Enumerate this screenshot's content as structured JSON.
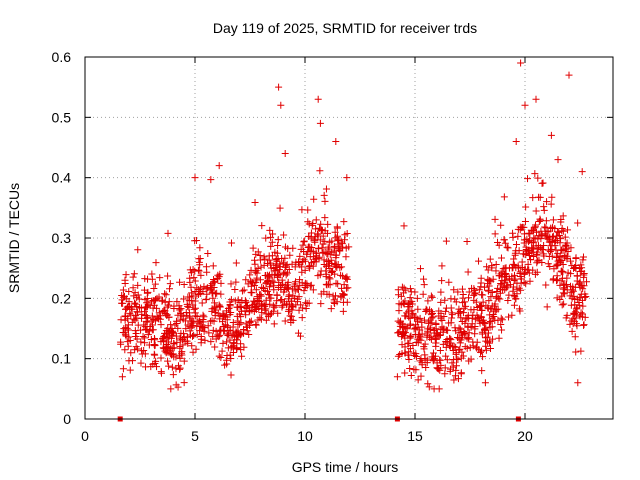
{
  "chart_data": {
    "type": "scatter",
    "title": "Day 119 of 2025, SRMTID for receiver trds",
    "xlabel": "GPS time / hours",
    "ylabel": "SRMTID / TECUs",
    "xlim": [
      0,
      24
    ],
    "ylim": [
      0,
      0.6
    ],
    "x_ticks": [
      0,
      5,
      10,
      15,
      20
    ],
    "x_tick_labels": [
      "0",
      "5",
      "10",
      "15",
      "20"
    ],
    "y_ticks": [
      0,
      0.1,
      0.2,
      0.3,
      0.4,
      0.5,
      0.6
    ],
    "y_tick_labels": [
      "0",
      "0.1",
      "0.2",
      "0.3",
      "0.4",
      "0.5",
      "0.6"
    ],
    "grid": true,
    "marker": "plus",
    "color": "#e00000",
    "zero_points_x": [
      1.6,
      14.2,
      19.7
    ],
    "segments": [
      {
        "x_start": 1.6,
        "x_end": 12.0,
        "baseline": [
          [
            1.6,
            0.16
          ],
          [
            2.5,
            0.17
          ],
          [
            3.5,
            0.15
          ],
          [
            4.3,
            0.13
          ],
          [
            5.0,
            0.2
          ],
          [
            5.8,
            0.19
          ],
          [
            6.5,
            0.14
          ],
          [
            7.3,
            0.17
          ],
          [
            8.0,
            0.21
          ],
          [
            8.8,
            0.24
          ],
          [
            9.5,
            0.2
          ],
          [
            10.3,
            0.27
          ],
          [
            11.0,
            0.26
          ],
          [
            12.0,
            0.24
          ]
        ],
        "spread": 0.06
      },
      {
        "x_start": 14.2,
        "x_end": 22.8,
        "baseline": [
          [
            14.2,
            0.16
          ],
          [
            15.0,
            0.14
          ],
          [
            16.0,
            0.13
          ],
          [
            17.0,
            0.15
          ],
          [
            18.0,
            0.17
          ],
          [
            19.0,
            0.22
          ],
          [
            20.0,
            0.27
          ],
          [
            20.8,
            0.3
          ],
          [
            21.5,
            0.27
          ],
          [
            22.2,
            0.2
          ],
          [
            22.8,
            0.22
          ]
        ],
        "spread": 0.065
      }
    ],
    "notable_points": [
      [
        1.7,
        0.07
      ],
      [
        3.9,
        0.05
      ],
      [
        5.0,
        0.4
      ],
      [
        6.1,
        0.42
      ],
      [
        8.8,
        0.55
      ],
      [
        8.9,
        0.52
      ],
      [
        9.1,
        0.44
      ],
      [
        10.6,
        0.53
      ],
      [
        10.7,
        0.49
      ],
      [
        11.4,
        0.46
      ],
      [
        11.9,
        0.4
      ],
      [
        14.2,
        0.07
      ],
      [
        14.5,
        0.32
      ],
      [
        16.1,
        0.05
      ],
      [
        18.2,
        0.06
      ],
      [
        19.6,
        0.46
      ],
      [
        19.8,
        0.59
      ],
      [
        20.0,
        0.52
      ],
      [
        20.5,
        0.53
      ],
      [
        21.2,
        0.47
      ],
      [
        21.5,
        0.43
      ],
      [
        22.0,
        0.57
      ],
      [
        22.4,
        0.06
      ],
      [
        22.6,
        0.41
      ]
    ]
  }
}
